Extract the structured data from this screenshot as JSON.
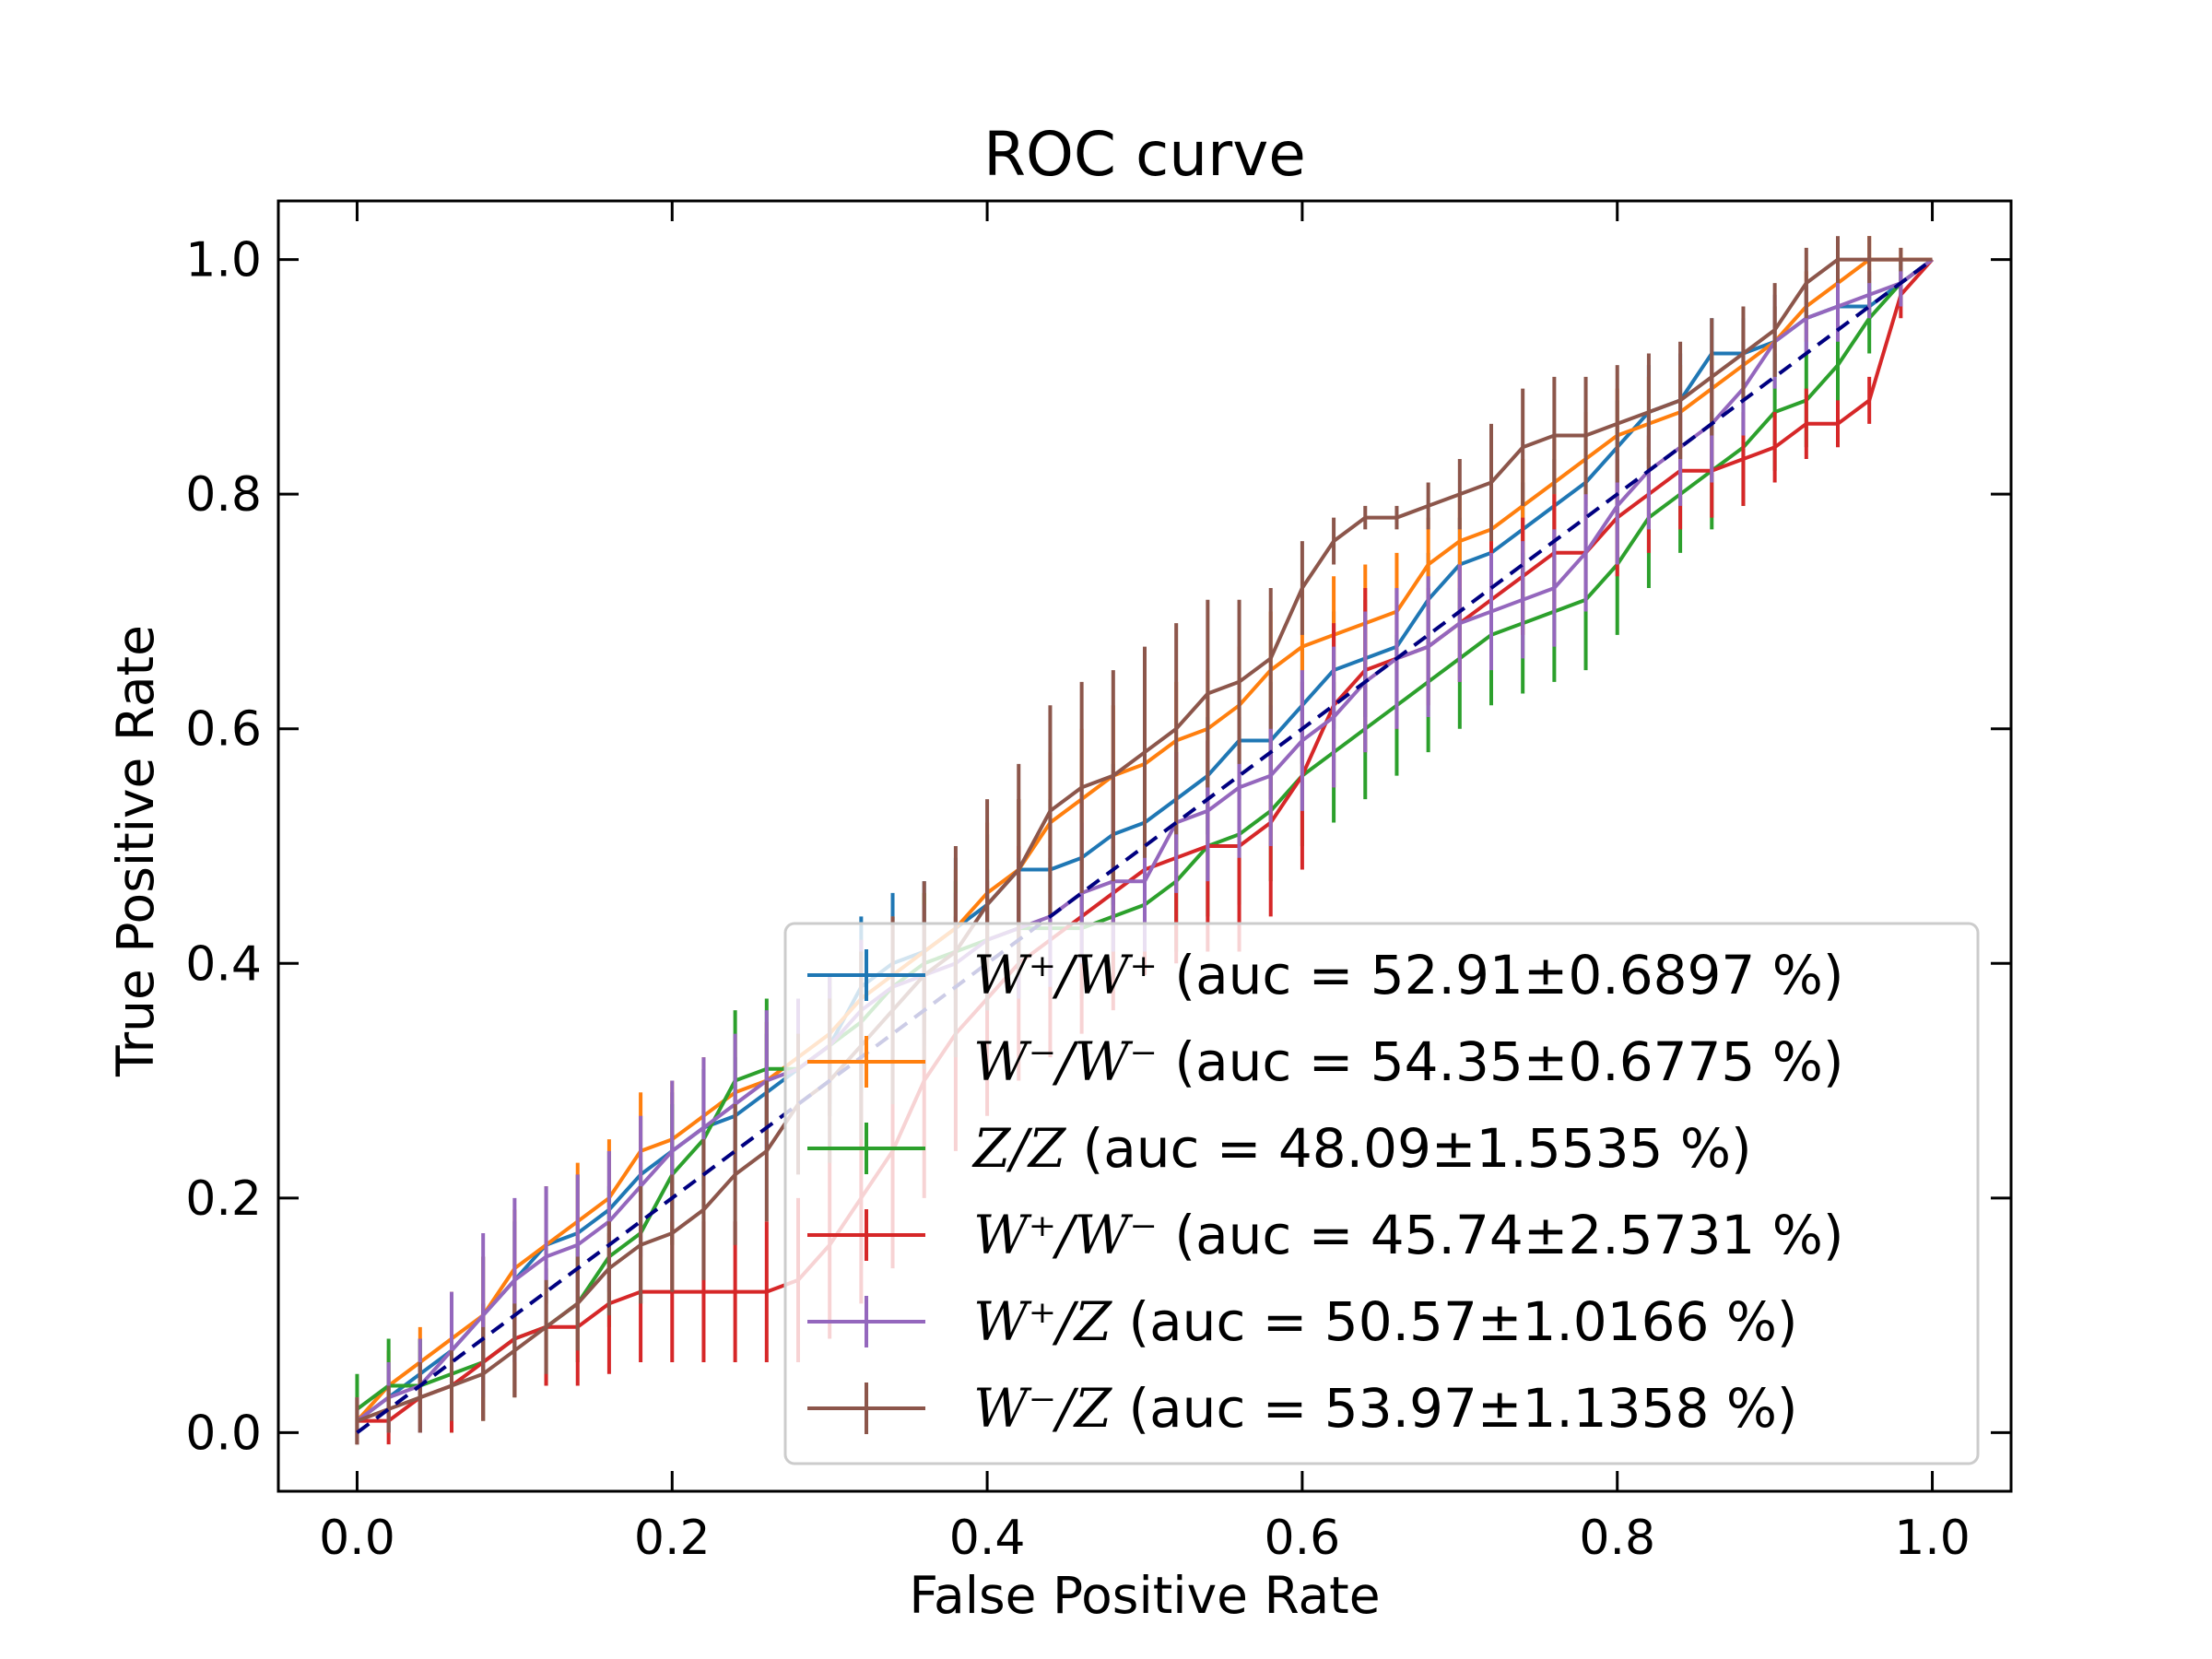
{
  "chart_data": {
    "type": "line",
    "title": "ROC curve",
    "xlabel": "False Positive Rate",
    "ylabel": "True Positive Rate",
    "xlim": [
      -0.05,
      1.05
    ],
    "ylim": [
      -0.05,
      1.05
    ],
    "xticks": [
      "0.0",
      "0.2",
      "0.4",
      "0.6",
      "0.8",
      "1.0"
    ],
    "yticks": [
      "0.0",
      "0.2",
      "0.4",
      "0.6",
      "0.8",
      "1.0"
    ],
    "grid": false,
    "legend_position": "lower-right",
    "diagonal": {
      "x": [
        0,
        1
      ],
      "y": [
        0,
        1
      ],
      "color": "#000080",
      "style": "dashed"
    },
    "series": [
      {
        "name": "W⁺/W⁺ (auc = 52.91±0.6897 %)",
        "math": "W⁺/W⁺",
        "rest": " (auc = 52.91±0.6897 %)",
        "color": "#1f77b4",
        "x": [
          0,
          0.02,
          0.04,
          0.06,
          0.08,
          0.1,
          0.12,
          0.14,
          0.16,
          0.18,
          0.2,
          0.22,
          0.24,
          0.26,
          0.28,
          0.3,
          0.32,
          0.34,
          0.36,
          0.38,
          0.4,
          0.42,
          0.44,
          0.46,
          0.48,
          0.5,
          0.52,
          0.54,
          0.56,
          0.58,
          0.6,
          0.62,
          0.64,
          0.66,
          0.68,
          0.7,
          0.72,
          0.74,
          0.76,
          0.78,
          0.8,
          0.82,
          0.84,
          0.86,
          0.88,
          0.9,
          0.92,
          0.94,
          0.96,
          0.98,
          1.0
        ],
        "y": [
          0.01,
          0.03,
          0.05,
          0.07,
          0.1,
          0.13,
          0.16,
          0.17,
          0.19,
          0.22,
          0.24,
          0.26,
          0.27,
          0.29,
          0.31,
          0.33,
          0.38,
          0.4,
          0.41,
          0.43,
          0.45,
          0.48,
          0.48,
          0.49,
          0.51,
          0.52,
          0.54,
          0.56,
          0.59,
          0.59,
          0.62,
          0.65,
          0.66,
          0.67,
          0.71,
          0.74,
          0.75,
          0.77,
          0.79,
          0.81,
          0.84,
          0.87,
          0.88,
          0.92,
          0.92,
          0.93,
          0.95,
          0.96,
          0.96,
          0.98,
          1.0
        ],
        "err": [
          0.02,
          0.03,
          0.03,
          0.04,
          0.05,
          0.05,
          0.05,
          0.05,
          0.05,
          0.05,
          0.05,
          0.05,
          0.05,
          0.05,
          0.05,
          0.05,
          0.06,
          0.06,
          0.06,
          0.06,
          0.06,
          0.06,
          0.06,
          0.06,
          0.06,
          0.06,
          0.05,
          0.05,
          0.05,
          0.05,
          0.05,
          0.05,
          0.05,
          0.05,
          0.04,
          0.04,
          0.04,
          0.04,
          0.04,
          0.04,
          0.04,
          0.04,
          0.04,
          0.03,
          0.03,
          0.03,
          0.03,
          0.03,
          0.02,
          0.02,
          0.0
        ]
      },
      {
        "name": "W⁻/W⁻ (auc = 54.35±0.6775 %)",
        "math": "W⁻/W⁻",
        "rest": " (auc = 54.35±0.6775 %)",
        "color": "#ff7f0e",
        "x": [
          0,
          0.02,
          0.04,
          0.06,
          0.08,
          0.1,
          0.12,
          0.14,
          0.16,
          0.18,
          0.2,
          0.22,
          0.24,
          0.26,
          0.28,
          0.3,
          0.32,
          0.34,
          0.36,
          0.38,
          0.4,
          0.42,
          0.44,
          0.46,
          0.48,
          0.5,
          0.52,
          0.54,
          0.56,
          0.58,
          0.6,
          0.62,
          0.64,
          0.66,
          0.68,
          0.7,
          0.72,
          0.74,
          0.76,
          0.78,
          0.8,
          0.82,
          0.84,
          0.86,
          0.88,
          0.9,
          0.92,
          0.94,
          0.96,
          0.98,
          1.0
        ],
        "y": [
          0.01,
          0.04,
          0.06,
          0.08,
          0.1,
          0.14,
          0.16,
          0.18,
          0.2,
          0.24,
          0.25,
          0.27,
          0.29,
          0.3,
          0.32,
          0.34,
          0.37,
          0.39,
          0.41,
          0.43,
          0.46,
          0.48,
          0.52,
          0.54,
          0.56,
          0.57,
          0.59,
          0.6,
          0.62,
          0.65,
          0.67,
          0.68,
          0.69,
          0.7,
          0.74,
          0.76,
          0.77,
          0.79,
          0.81,
          0.83,
          0.85,
          0.86,
          0.87,
          0.89,
          0.91,
          0.93,
          0.96,
          0.98,
          1.0,
          1.0,
          1.0
        ],
        "err": [
          0.02,
          0.03,
          0.03,
          0.04,
          0.05,
          0.05,
          0.05,
          0.05,
          0.05,
          0.05,
          0.05,
          0.05,
          0.05,
          0.05,
          0.05,
          0.05,
          0.05,
          0.05,
          0.05,
          0.05,
          0.06,
          0.06,
          0.06,
          0.06,
          0.06,
          0.06,
          0.05,
          0.05,
          0.05,
          0.05,
          0.05,
          0.05,
          0.05,
          0.05,
          0.04,
          0.04,
          0.04,
          0.04,
          0.04,
          0.04,
          0.04,
          0.04,
          0.04,
          0.03,
          0.03,
          0.03,
          0.03,
          0.02,
          0.02,
          0.01,
          0.0
        ]
      },
      {
        "name": "Z/Z (auc = 48.09±1.5535 %)",
        "math": "Z/Z",
        "rest": " (auc = 48.09±1.5535 %)",
        "color": "#2ca02c",
        "x": [
          0,
          0.02,
          0.04,
          0.06,
          0.08,
          0.1,
          0.12,
          0.14,
          0.16,
          0.18,
          0.2,
          0.22,
          0.24,
          0.26,
          0.28,
          0.3,
          0.32,
          0.34,
          0.36,
          0.38,
          0.4,
          0.42,
          0.44,
          0.46,
          0.48,
          0.5,
          0.52,
          0.54,
          0.56,
          0.58,
          0.6,
          0.62,
          0.64,
          0.66,
          0.68,
          0.7,
          0.72,
          0.74,
          0.76,
          0.78,
          0.8,
          0.82,
          0.84,
          0.86,
          0.88,
          0.9,
          0.92,
          0.94,
          0.96,
          0.98,
          1.0
        ],
        "y": [
          0.02,
          0.04,
          0.04,
          0.05,
          0.06,
          0.08,
          0.09,
          0.11,
          0.15,
          0.17,
          0.22,
          0.25,
          0.3,
          0.31,
          0.31,
          0.33,
          0.35,
          0.38,
          0.4,
          0.41,
          0.42,
          0.43,
          0.43,
          0.43,
          0.44,
          0.45,
          0.47,
          0.5,
          0.51,
          0.53,
          0.56,
          0.58,
          0.6,
          0.62,
          0.64,
          0.66,
          0.68,
          0.69,
          0.7,
          0.71,
          0.74,
          0.78,
          0.8,
          0.82,
          0.84,
          0.87,
          0.88,
          0.91,
          0.95,
          0.98,
          1.0
        ],
        "err": [
          0.03,
          0.04,
          0.04,
          0.05,
          0.05,
          0.05,
          0.05,
          0.05,
          0.06,
          0.06,
          0.06,
          0.06,
          0.06,
          0.06,
          0.06,
          0.06,
          0.06,
          0.06,
          0.06,
          0.06,
          0.06,
          0.06,
          0.06,
          0.06,
          0.06,
          0.06,
          0.06,
          0.06,
          0.06,
          0.06,
          0.06,
          0.06,
          0.06,
          0.06,
          0.06,
          0.06,
          0.06,
          0.06,
          0.06,
          0.06,
          0.06,
          0.06,
          0.05,
          0.05,
          0.05,
          0.05,
          0.04,
          0.04,
          0.03,
          0.02,
          0.0
        ]
      },
      {
        "name": "W⁺/W⁻ (auc = 45.74±2.5731 %)",
        "math": "W⁺/W⁻",
        "rest": " (auc = 45.74±2.5731 %)",
        "color": "#d62728",
        "x": [
          0,
          0.02,
          0.04,
          0.06,
          0.08,
          0.1,
          0.12,
          0.14,
          0.16,
          0.18,
          0.2,
          0.22,
          0.24,
          0.26,
          0.28,
          0.3,
          0.32,
          0.34,
          0.36,
          0.38,
          0.4,
          0.42,
          0.44,
          0.46,
          0.48,
          0.5,
          0.52,
          0.54,
          0.56,
          0.58,
          0.6,
          0.62,
          0.64,
          0.66,
          0.68,
          0.7,
          0.72,
          0.74,
          0.76,
          0.78,
          0.8,
          0.82,
          0.84,
          0.86,
          0.88,
          0.9,
          0.92,
          0.94,
          0.96,
          0.98,
          1.0
        ],
        "y": [
          0.01,
          0.01,
          0.03,
          0.04,
          0.06,
          0.08,
          0.09,
          0.09,
          0.11,
          0.12,
          0.12,
          0.12,
          0.12,
          0.12,
          0.13,
          0.16,
          0.2,
          0.24,
          0.3,
          0.34,
          0.37,
          0.4,
          0.42,
          0.44,
          0.46,
          0.48,
          0.49,
          0.5,
          0.5,
          0.52,
          0.56,
          0.62,
          0.65,
          0.66,
          0.67,
          0.69,
          0.71,
          0.73,
          0.75,
          0.75,
          0.78,
          0.8,
          0.82,
          0.82,
          0.83,
          0.84,
          0.86,
          0.86,
          0.88,
          0.97,
          1.0
        ],
        "err": [
          0.02,
          0.02,
          0.03,
          0.04,
          0.05,
          0.05,
          0.05,
          0.05,
          0.06,
          0.06,
          0.06,
          0.06,
          0.06,
          0.06,
          0.07,
          0.08,
          0.09,
          0.1,
          0.1,
          0.1,
          0.1,
          0.1,
          0.1,
          0.1,
          0.1,
          0.09,
          0.09,
          0.09,
          0.09,
          0.08,
          0.08,
          0.07,
          0.07,
          0.06,
          0.05,
          0.05,
          0.05,
          0.05,
          0.05,
          0.05,
          0.05,
          0.05,
          0.05,
          0.04,
          0.04,
          0.03,
          0.03,
          0.02,
          0.02,
          0.02,
          0.0
        ]
      },
      {
        "name": "W⁺/Z (auc = 50.57±1.0166 %)",
        "math": "W⁺/Z",
        "rest": " (auc = 50.57±1.0166 %)",
        "color": "#9467bd",
        "x": [
          0,
          0.02,
          0.04,
          0.06,
          0.08,
          0.1,
          0.12,
          0.14,
          0.16,
          0.18,
          0.2,
          0.22,
          0.24,
          0.26,
          0.28,
          0.3,
          0.32,
          0.34,
          0.36,
          0.38,
          0.4,
          0.42,
          0.44,
          0.46,
          0.48,
          0.5,
          0.52,
          0.54,
          0.56,
          0.58,
          0.6,
          0.62,
          0.64,
          0.66,
          0.68,
          0.7,
          0.72,
          0.74,
          0.76,
          0.78,
          0.8,
          0.82,
          0.84,
          0.86,
          0.88,
          0.9,
          0.92,
          0.94,
          0.96,
          0.98,
          1.0
        ],
        "y": [
          0.01,
          0.03,
          0.04,
          0.07,
          0.1,
          0.13,
          0.15,
          0.16,
          0.18,
          0.21,
          0.24,
          0.26,
          0.28,
          0.3,
          0.31,
          0.33,
          0.36,
          0.38,
          0.39,
          0.4,
          0.42,
          0.43,
          0.44,
          0.46,
          0.47,
          0.47,
          0.52,
          0.53,
          0.55,
          0.56,
          0.59,
          0.61,
          0.64,
          0.66,
          0.67,
          0.69,
          0.7,
          0.71,
          0.72,
          0.75,
          0.79,
          0.82,
          0.84,
          0.86,
          0.89,
          0.93,
          0.95,
          0.96,
          0.97,
          0.98,
          1.0
        ],
        "err": [
          0.02,
          0.03,
          0.04,
          0.05,
          0.07,
          0.07,
          0.06,
          0.06,
          0.06,
          0.06,
          0.06,
          0.06,
          0.06,
          0.06,
          0.06,
          0.06,
          0.06,
          0.06,
          0.06,
          0.06,
          0.06,
          0.06,
          0.06,
          0.06,
          0.06,
          0.06,
          0.06,
          0.06,
          0.06,
          0.06,
          0.06,
          0.06,
          0.06,
          0.06,
          0.06,
          0.05,
          0.05,
          0.05,
          0.05,
          0.05,
          0.05,
          0.05,
          0.05,
          0.05,
          0.04,
          0.04,
          0.03,
          0.03,
          0.02,
          0.02,
          0.0
        ]
      },
      {
        "name": "W⁻/Z (auc = 53.97±1.1358 %)",
        "math": "W⁻/Z",
        "rest": " (auc = 53.97±1.1358 %)",
        "color": "#8c564b",
        "x": [
          0,
          0.02,
          0.04,
          0.06,
          0.08,
          0.1,
          0.12,
          0.14,
          0.16,
          0.18,
          0.2,
          0.22,
          0.24,
          0.26,
          0.28,
          0.3,
          0.32,
          0.34,
          0.36,
          0.38,
          0.4,
          0.42,
          0.44,
          0.46,
          0.48,
          0.5,
          0.52,
          0.54,
          0.56,
          0.58,
          0.6,
          0.62,
          0.64,
          0.66,
          0.68,
          0.7,
          0.72,
          0.74,
          0.76,
          0.78,
          0.8,
          0.82,
          0.84,
          0.86,
          0.88,
          0.9,
          0.92,
          0.94,
          0.96,
          0.98,
          1.0
        ],
        "y": [
          0.01,
          0.02,
          0.03,
          0.04,
          0.05,
          0.07,
          0.09,
          0.11,
          0.14,
          0.16,
          0.17,
          0.19,
          0.22,
          0.24,
          0.28,
          0.3,
          0.33,
          0.36,
          0.39,
          0.41,
          0.45,
          0.48,
          0.53,
          0.55,
          0.56,
          0.58,
          0.6,
          0.63,
          0.64,
          0.66,
          0.72,
          0.76,
          0.78,
          0.78,
          0.79,
          0.8,
          0.81,
          0.84,
          0.85,
          0.85,
          0.86,
          0.87,
          0.88,
          0.9,
          0.92,
          0.94,
          0.98,
          1.0,
          1.0,
          1.0,
          1.0
        ],
        "err": [
          0.02,
          0.02,
          0.03,
          0.03,
          0.04,
          0.04,
          0.04,
          0.04,
          0.04,
          0.05,
          0.05,
          0.06,
          0.06,
          0.06,
          0.06,
          0.07,
          0.08,
          0.08,
          0.08,
          0.09,
          0.09,
          0.09,
          0.09,
          0.09,
          0.09,
          0.09,
          0.09,
          0.08,
          0.07,
          0.06,
          0.04,
          0.02,
          0.01,
          0.01,
          0.02,
          0.03,
          0.05,
          0.05,
          0.05,
          0.05,
          0.05,
          0.05,
          0.05,
          0.05,
          0.04,
          0.04,
          0.03,
          0.02,
          0.02,
          0.01,
          0.0
        ]
      }
    ]
  }
}
